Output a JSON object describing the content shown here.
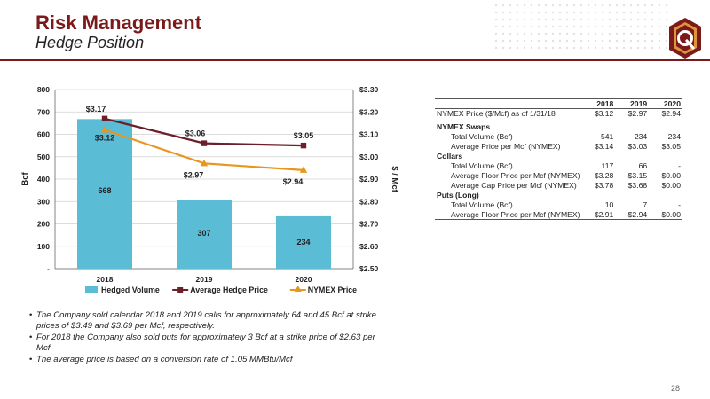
{
  "header": {
    "title": "Risk Management",
    "subtitle": "Hedge Position",
    "brand_color": "#7a1a1a"
  },
  "logo": {
    "icon": "q-logo-icon",
    "letter": "Q",
    "colors": [
      "#7a1a1a",
      "#e8a33d"
    ]
  },
  "chart_data": {
    "type": "bar",
    "categories": [
      "2018",
      "2019",
      "2020"
    ],
    "series": [
      {
        "name": "Hedged Volume",
        "kind": "bar",
        "axis": "left",
        "values": [
          668,
          307,
          234
        ],
        "labels": [
          "668",
          "307",
          "234"
        ],
        "color": "#5bbcd6"
      },
      {
        "name": "Average Hedge Price",
        "kind": "line",
        "axis": "right",
        "values": [
          3.17,
          3.06,
          3.05
        ],
        "labels": [
          "$3.17",
          "$3.06",
          "$3.05"
        ],
        "color": "#6b1f2a"
      },
      {
        "name": "NYMEX Price",
        "kind": "line",
        "axis": "right",
        "values": [
          3.12,
          2.97,
          2.94
        ],
        "labels": [
          "$3.12",
          "$2.97",
          "$2.94"
        ],
        "color": "#e8961e"
      }
    ],
    "ylabel": "Bcf",
    "y2label": "$ / Mcf",
    "ylim": [
      0,
      800
    ],
    "y2lim": [
      2.5,
      3.3
    ],
    "yticks": [
      0,
      100,
      200,
      300,
      400,
      500,
      600,
      700,
      800
    ],
    "ytick_labels": [
      "-",
      "100",
      "200",
      "300",
      "400",
      "500",
      "600",
      "700",
      "800"
    ],
    "y2ticks": [
      2.5,
      2.6,
      2.7,
      2.8,
      2.9,
      3.0,
      3.1,
      3.2,
      3.3
    ],
    "y2tick_labels": [
      "$2.50",
      "$2.60",
      "$2.70",
      "$2.80",
      "$2.90",
      "$3.00",
      "$3.10",
      "$3.20",
      "$3.30"
    ],
    "grid": true,
    "legend_position": "bottom"
  },
  "table": {
    "headers": [
      "",
      "2018",
      "2019",
      "2020"
    ],
    "rows": [
      {
        "type": "row",
        "label": "NYMEX Price ($/Mcf) as of 1/31/18",
        "values": [
          "$3.12",
          "$2.97",
          "$2.94"
        ]
      },
      {
        "type": "section",
        "label": "NYMEX Swaps"
      },
      {
        "type": "row",
        "indent": true,
        "label": "Total Volume (Bcf)",
        "values": [
          "541",
          "234",
          "234"
        ]
      },
      {
        "type": "row",
        "indent": true,
        "label": "Average Price per Mcf (NYMEX)",
        "values": [
          "$3.14",
          "$3.03",
          "$3.05"
        ]
      },
      {
        "type": "section",
        "label": "Collars"
      },
      {
        "type": "row",
        "indent": true,
        "label": "Total Volume (Bcf)",
        "values": [
          "117",
          "66",
          "-"
        ]
      },
      {
        "type": "row",
        "indent": true,
        "label": "Average Floor Price per Mcf (NYMEX)",
        "values": [
          "$3.28",
          "$3.15",
          "$0.00"
        ]
      },
      {
        "type": "row",
        "indent": true,
        "label": "Average Cap Price per Mcf (NYMEX)",
        "values": [
          "$3.78",
          "$3.68",
          "$0.00"
        ]
      },
      {
        "type": "section",
        "label": "Puts (Long)"
      },
      {
        "type": "row",
        "indent": true,
        "label": "Total Volume (Bcf)",
        "values": [
          "10",
          "7",
          "-"
        ]
      },
      {
        "type": "row",
        "indent": true,
        "label": "Average Floor Price per Mcf (NYMEX)",
        "values": [
          "$2.91",
          "$2.94",
          "$0.00"
        ]
      }
    ]
  },
  "bullets": [
    "The Company sold calendar 2018 and 2019 calls for approximately 64 and 45 Bcf at strike prices of $3.49 and $3.69 per Mcf, respectively.",
    "For 2018 the Company also sold puts for approximately 3 Bcf at a strike price of $2.63 per Mcf",
    "The average price is based on a conversion rate of 1.05 MMBtu/Mcf"
  ],
  "footer": {
    "page_number": "28"
  }
}
